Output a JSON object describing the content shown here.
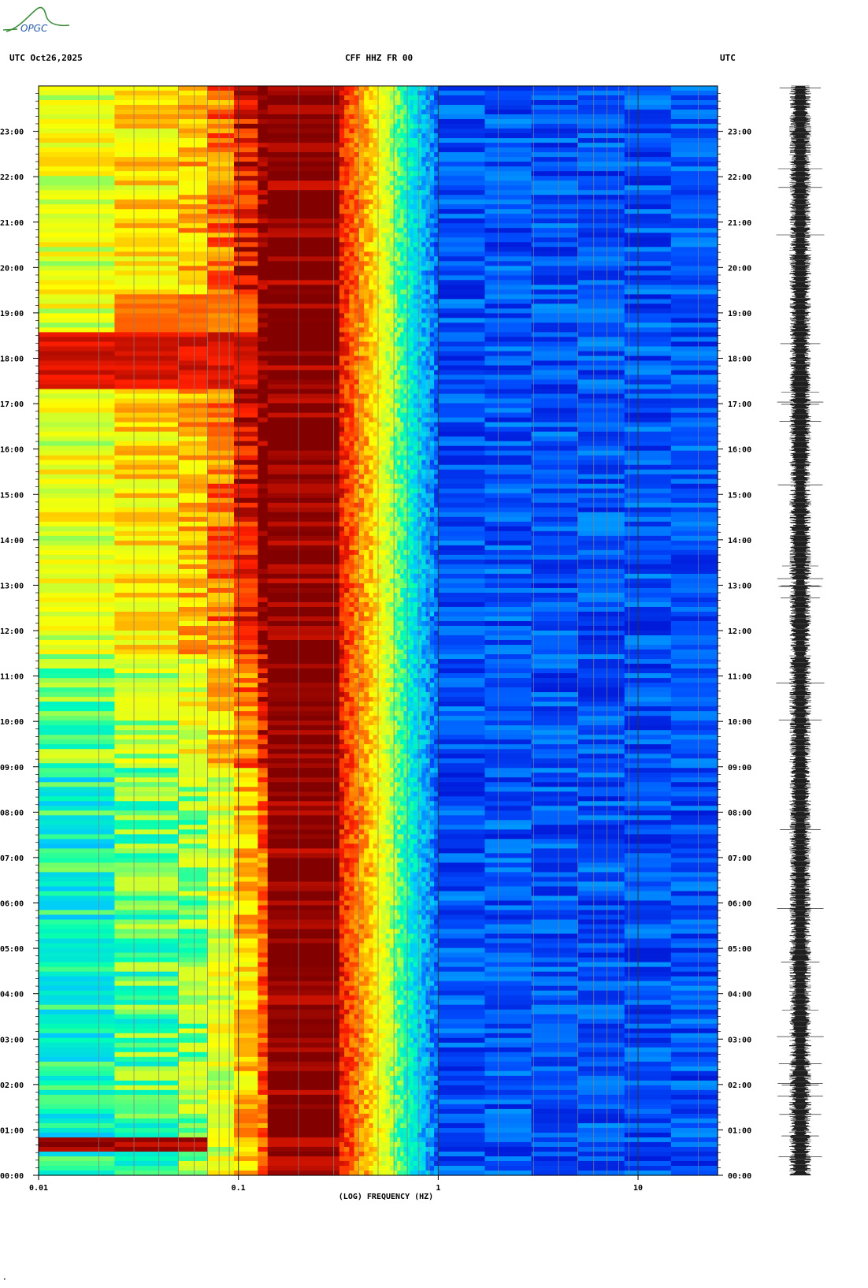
{
  "header": {
    "left": "UTC  Oct26,2025",
    "center": "CFF HHZ FR 00",
    "right": "UTC",
    "logo_text": "OPGC"
  },
  "chart_data": {
    "type": "heatmap",
    "title": "CFF HHZ FR 00",
    "date": "Oct26,2025",
    "timezone": "UTC",
    "xlabel": "(LOG) FREQUENCY (HZ)",
    "x_scale": "log",
    "xlim": [
      0.01,
      25
    ],
    "x_ticks": [
      {
        "value": 0.01,
        "label": "0.01"
      },
      {
        "value": 0.1,
        "label": "0.1"
      },
      {
        "value": 1,
        "label": "1"
      },
      {
        "value": 10,
        "label": "10"
      }
    ],
    "ylim_hours": [
      0,
      24
    ],
    "y_ticks": [
      "00:00",
      "01:00",
      "02:00",
      "03:00",
      "04:00",
      "05:00",
      "06:00",
      "07:00",
      "08:00",
      "09:00",
      "10:00",
      "11:00",
      "12:00",
      "13:00",
      "14:00",
      "15:00",
      "16:00",
      "17:00",
      "18:00",
      "19:00",
      "20:00",
      "21:00",
      "22:00",
      "23:00"
    ],
    "colormap": [
      "#0000c8",
      "#0050ff",
      "#00c8ff",
      "#00ffb4",
      "#c8ff32",
      "#ffff00",
      "#ff8c00",
      "#ff1e00",
      "#820000"
    ],
    "spectral_bands": [
      {
        "f_min": 0.01,
        "f_max": 0.024,
        "level": 0.45
      },
      {
        "f_min": 0.024,
        "f_max": 0.05,
        "level": 0.52
      },
      {
        "f_min": 0.05,
        "f_max": 0.07,
        "level": 0.58
      },
      {
        "f_min": 0.07,
        "f_max": 0.095,
        "level": 0.66
      },
      {
        "f_min": 0.095,
        "f_max": 0.125,
        "level": 0.78
      },
      {
        "f_min": 0.125,
        "f_max": 0.14,
        "level": 0.9
      },
      {
        "f_min": 0.14,
        "f_max": 0.32,
        "level": 1.0
      },
      {
        "f_min": 0.32,
        "f_max": 0.45,
        "level": 0.88
      },
      {
        "f_min": 0.45,
        "f_max": 0.6,
        "level": 0.68
      },
      {
        "f_min": 0.6,
        "f_max": 0.75,
        "level": 0.45
      },
      {
        "f_min": 0.75,
        "f_max": 1.0,
        "level": 0.3
      },
      {
        "f_min": 1.0,
        "f_max": 25,
        "level": 0.12
      }
    ],
    "events": [
      {
        "start_hour": 0.55,
        "end_hour": 0.85,
        "f_min": 0.01,
        "f_max": 0.07,
        "level": 1.0
      },
      {
        "start_hour": 17.3,
        "end_hour": 18.6,
        "f_min": 0.01,
        "f_max": 0.11,
        "level": 0.95
      },
      {
        "start_hour": 18.6,
        "end_hour": 19.4,
        "f_min": 0.024,
        "f_max": 0.11,
        "level": 0.82
      }
    ],
    "waveform_trace": true,
    "grid": true
  }
}
